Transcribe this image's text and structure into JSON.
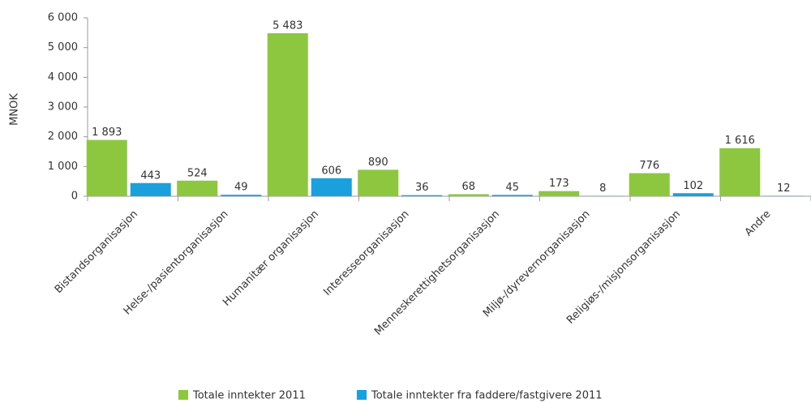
{
  "chart_data": {
    "type": "bar",
    "y_label": "MNOK",
    "categories": [
      "Bistandsorganisasjon",
      "Helse-/pasientorganisasjon",
      "Humanitær organisasjon",
      "Interesseorganisasjon",
      "Menneskerettighetsorganisasjon",
      "Miljø-/dyrevernorganisasjon",
      "Religiøs-/misjonsorganisasjon",
      "Andre"
    ],
    "series": [
      {
        "name": "Totale inntekter 2011",
        "color": "#8dc63f",
        "values": [
          1893,
          524,
          5483,
          890,
          68,
          173,
          776,
          1616
        ],
        "value_labels": [
          "1 893",
          "524",
          "5 483",
          "890",
          "68",
          "173",
          "776",
          "1 616"
        ]
      },
      {
        "name": "Totale inntekter fra faddere/fastgivere 2011",
        "color": "#1aa0dd",
        "values": [
          443,
          49,
          606,
          36,
          45,
          8,
          102,
          12
        ],
        "value_labels": [
          "443",
          "49",
          "606",
          "36",
          "45",
          "8",
          "102",
          "12"
        ]
      }
    ],
    "ylim": [
      0,
      6000
    ],
    "yticks": [
      0,
      {
        "value": 1000,
        "label": "1 000"
      },
      {
        "value": 2000,
        "label": "2 000"
      },
      {
        "value": 3000,
        "label": "3 000"
      },
      {
        "value": 4000,
        "label": "4 000"
      },
      {
        "value": 5000,
        "label": "5 000"
      },
      {
        "value": 6000,
        "label": "6 000"
      }
    ],
    "legend": "bottom"
  }
}
